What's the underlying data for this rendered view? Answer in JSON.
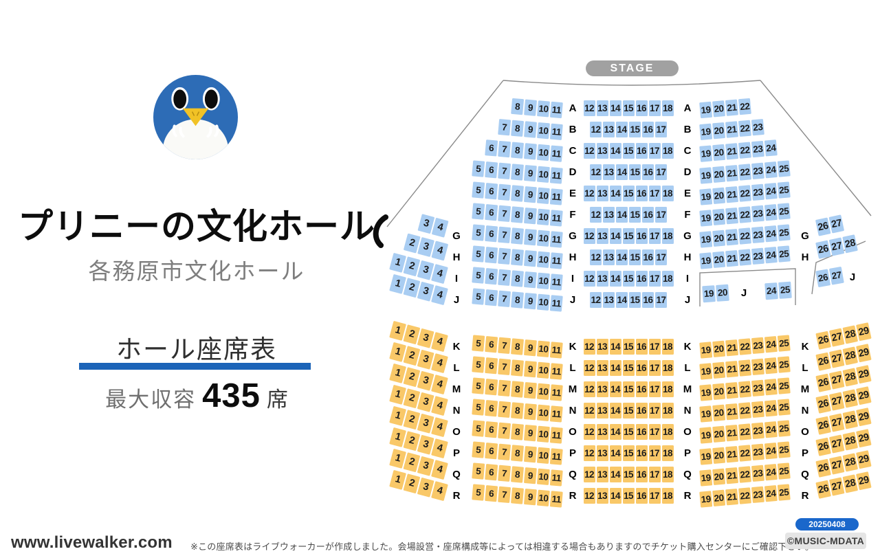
{
  "branding": {
    "title": "プリニーの文化ホール",
    "subtitle": "各務原市文化ホール",
    "section_label": "ホール座席表",
    "capacity_prefix": "最大収容",
    "capacity_number": "435",
    "capacity_suffix": "席"
  },
  "stage_label": "STAGE",
  "footer": {
    "site": "www.livewalker.com",
    "disclaimer": "※この座席表はライブウォーカーが作成しました。会場設営・座席構成等によっては相違する場合もありますのでチケット購入センターにご確認下さい。",
    "date_badge": "20250408",
    "credit_badge": "©MUSIC-MDATA"
  },
  "colors": {
    "seat_blue": "#a9cdf2",
    "seat_orange": "#f9c868",
    "accent_blue": "#1c64b8",
    "logo_blue": "#2d6cb6",
    "stage_gray": "#a1a1a1",
    "date_badge_blue": "#1a67cb",
    "line_gray": "#8a8a8a"
  },
  "seatmap": {
    "rows": [
      {
        "label": "A",
        "tone": "front",
        "outer_left": [],
        "left_center": [
          "8",
          "9",
          "10",
          "11"
        ],
        "center": [
          "12",
          "13",
          "14",
          "15",
          "16",
          "17",
          "18"
        ],
        "right_center": [
          "19",
          "20",
          "21",
          "22"
        ],
        "outer_right": []
      },
      {
        "label": "B",
        "tone": "front",
        "outer_left": [],
        "left_center": [
          "7",
          "8",
          "9",
          "10",
          "11"
        ],
        "center": [
          "12",
          "13",
          "14",
          "15",
          "16",
          "17"
        ],
        "right_center": [
          "19",
          "20",
          "21",
          "22",
          "23"
        ],
        "outer_right": []
      },
      {
        "label": "C",
        "tone": "front",
        "outer_left": [],
        "left_center": [
          "6",
          "7",
          "8",
          "9",
          "10",
          "11"
        ],
        "center": [
          "12",
          "13",
          "14",
          "15",
          "16",
          "17",
          "18"
        ],
        "right_center": [
          "19",
          "20",
          "21",
          "22",
          "23",
          "24"
        ],
        "outer_right": []
      },
      {
        "label": "D",
        "tone": "front",
        "outer_left": [],
        "left_center": [
          "5",
          "6",
          "7",
          "8",
          "9",
          "10",
          "11"
        ],
        "center": [
          "12",
          "13",
          "14",
          "15",
          "16",
          "17"
        ],
        "right_center": [
          "19",
          "20",
          "21",
          "22",
          "23",
          "24",
          "25"
        ],
        "outer_right": []
      },
      {
        "label": "E",
        "tone": "front",
        "outer_left": [],
        "left_center": [
          "5",
          "6",
          "7",
          "8",
          "9",
          "10",
          "11"
        ],
        "center": [
          "12",
          "13",
          "14",
          "15",
          "16",
          "17",
          "18"
        ],
        "right_center": [
          "19",
          "20",
          "21",
          "22",
          "23",
          "24",
          "25"
        ],
        "outer_right": []
      },
      {
        "label": "F",
        "tone": "front",
        "outer_left": [],
        "left_center": [
          "5",
          "6",
          "7",
          "8",
          "9",
          "10",
          "11"
        ],
        "center": [
          "12",
          "13",
          "14",
          "15",
          "16",
          "17"
        ],
        "right_center": [
          "19",
          "20",
          "21",
          "22",
          "23",
          "24",
          "25"
        ],
        "outer_right": []
      },
      {
        "label": "G",
        "tone": "front",
        "outer_left": [
          "3",
          "4"
        ],
        "left_center": [
          "5",
          "6",
          "7",
          "8",
          "9",
          "10",
          "11"
        ],
        "center": [
          "12",
          "13",
          "14",
          "15",
          "16",
          "17",
          "18"
        ],
        "right_center": [
          "19",
          "20",
          "21",
          "22",
          "23",
          "24",
          "25"
        ],
        "outer_right": [
          "26",
          "27"
        ]
      },
      {
        "label": "H",
        "tone": "front",
        "outer_left": [
          "2",
          "3",
          "4"
        ],
        "left_center": [
          "5",
          "6",
          "7",
          "8",
          "9",
          "10",
          "11"
        ],
        "center": [
          "12",
          "13",
          "14",
          "15",
          "16",
          "17"
        ],
        "right_center": [
          "19",
          "20",
          "21",
          "22",
          "23",
          "24",
          "25"
        ],
        "outer_right": [
          "26",
          "27",
          "28"
        ]
      },
      {
        "label": "I",
        "tone": "front",
        "outer_left": [
          "1",
          "2",
          "3",
          "4"
        ],
        "left_center": [
          "5",
          "6",
          "7",
          "8",
          "9",
          "10",
          "11"
        ],
        "center": [
          "12",
          "13",
          "14",
          "15",
          "16",
          "17",
          "18"
        ],
        "right_center": [],
        "outer_right": []
      },
      {
        "label": "J",
        "tone": "front",
        "outer_left": [
          "1",
          "2",
          "3",
          "4"
        ],
        "left_center": [
          "5",
          "6",
          "7",
          "8",
          "9",
          "10",
          "11"
        ],
        "center": [
          "12",
          "13",
          "14",
          "15",
          "16",
          "17"
        ],
        "right_center": [],
        "outer_right": []
      },
      {
        "label": "K",
        "tone": "rear",
        "outer_left": [
          "1",
          "2",
          "3",
          "4"
        ],
        "left_center": [
          "5",
          "6",
          "7",
          "8",
          "9",
          "10",
          "11"
        ],
        "center": [
          "12",
          "13",
          "14",
          "15",
          "16",
          "17",
          "18"
        ],
        "right_center": [
          "19",
          "20",
          "21",
          "22",
          "23",
          "24",
          "25"
        ],
        "outer_right": [
          "26",
          "27",
          "28",
          "29"
        ]
      },
      {
        "label": "L",
        "tone": "rear",
        "outer_left": [
          "1",
          "2",
          "3",
          "4"
        ],
        "left_center": [
          "5",
          "6",
          "7",
          "8",
          "9",
          "10",
          "11"
        ],
        "center": [
          "12",
          "13",
          "14",
          "15",
          "16",
          "17",
          "18"
        ],
        "right_center": [
          "19",
          "20",
          "21",
          "22",
          "23",
          "24",
          "25"
        ],
        "outer_right": [
          "26",
          "27",
          "28",
          "29"
        ]
      },
      {
        "label": "M",
        "tone": "rear",
        "outer_left": [
          "1",
          "2",
          "3",
          "4"
        ],
        "left_center": [
          "5",
          "6",
          "7",
          "8",
          "9",
          "10",
          "11"
        ],
        "center": [
          "12",
          "13",
          "14",
          "15",
          "16",
          "17",
          "18"
        ],
        "right_center": [
          "19",
          "20",
          "21",
          "22",
          "23",
          "24",
          "25"
        ],
        "outer_right": [
          "26",
          "27",
          "28",
          "29"
        ]
      },
      {
        "label": "N",
        "tone": "rear",
        "outer_left": [
          "1",
          "2",
          "3",
          "4"
        ],
        "left_center": [
          "5",
          "6",
          "7",
          "8",
          "9",
          "10",
          "11"
        ],
        "center": [
          "12",
          "13",
          "14",
          "15",
          "16",
          "17",
          "18"
        ],
        "right_center": [
          "19",
          "20",
          "21",
          "22",
          "23",
          "24",
          "25"
        ],
        "outer_right": [
          "26",
          "27",
          "28",
          "29"
        ]
      },
      {
        "label": "O",
        "tone": "rear",
        "outer_left": [
          "1",
          "2",
          "3",
          "4"
        ],
        "left_center": [
          "5",
          "6",
          "7",
          "8",
          "9",
          "10",
          "11"
        ],
        "center": [
          "12",
          "13",
          "14",
          "15",
          "16",
          "17",
          "18"
        ],
        "right_center": [
          "19",
          "20",
          "21",
          "22",
          "23",
          "24",
          "25"
        ],
        "outer_right": [
          "26",
          "27",
          "28",
          "29"
        ]
      },
      {
        "label": "P",
        "tone": "rear",
        "outer_left": [
          "1",
          "2",
          "3",
          "4"
        ],
        "left_center": [
          "5",
          "6",
          "7",
          "8",
          "9",
          "10",
          "11"
        ],
        "center": [
          "12",
          "13",
          "14",
          "15",
          "16",
          "17",
          "18"
        ],
        "right_center": [
          "19",
          "20",
          "21",
          "22",
          "23",
          "24",
          "25"
        ],
        "outer_right": [
          "26",
          "27",
          "28",
          "29"
        ]
      },
      {
        "label": "Q",
        "tone": "rear",
        "outer_left": [
          "1",
          "2",
          "3",
          "4"
        ],
        "left_center": [
          "5",
          "6",
          "7",
          "8",
          "9",
          "10",
          "11"
        ],
        "center": [
          "12",
          "13",
          "14",
          "15",
          "16",
          "17",
          "18"
        ],
        "right_center": [
          "19",
          "20",
          "21",
          "22",
          "23",
          "24",
          "25"
        ],
        "outer_right": [
          "26",
          "27",
          "28",
          "29"
        ]
      },
      {
        "label": "R",
        "tone": "rear",
        "outer_left": [
          "1",
          "2",
          "3",
          "4"
        ],
        "left_center": [
          "5",
          "6",
          "7",
          "8",
          "9",
          "10",
          "11"
        ],
        "center": [
          "12",
          "13",
          "14",
          "15",
          "16",
          "17",
          "18"
        ],
        "right_center": [
          "19",
          "20",
          "21",
          "22",
          "23",
          "24",
          "25"
        ],
        "outer_right": [
          "26",
          "27",
          "28",
          "29"
        ]
      }
    ],
    "j_right_box": {
      "seats_left": [
        "19",
        "20"
      ],
      "label": "J",
      "seats_right": [
        "24",
        "25"
      ]
    },
    "j_pocket": {
      "seats": [
        "26",
        "27"
      ],
      "label": "J"
    }
  }
}
